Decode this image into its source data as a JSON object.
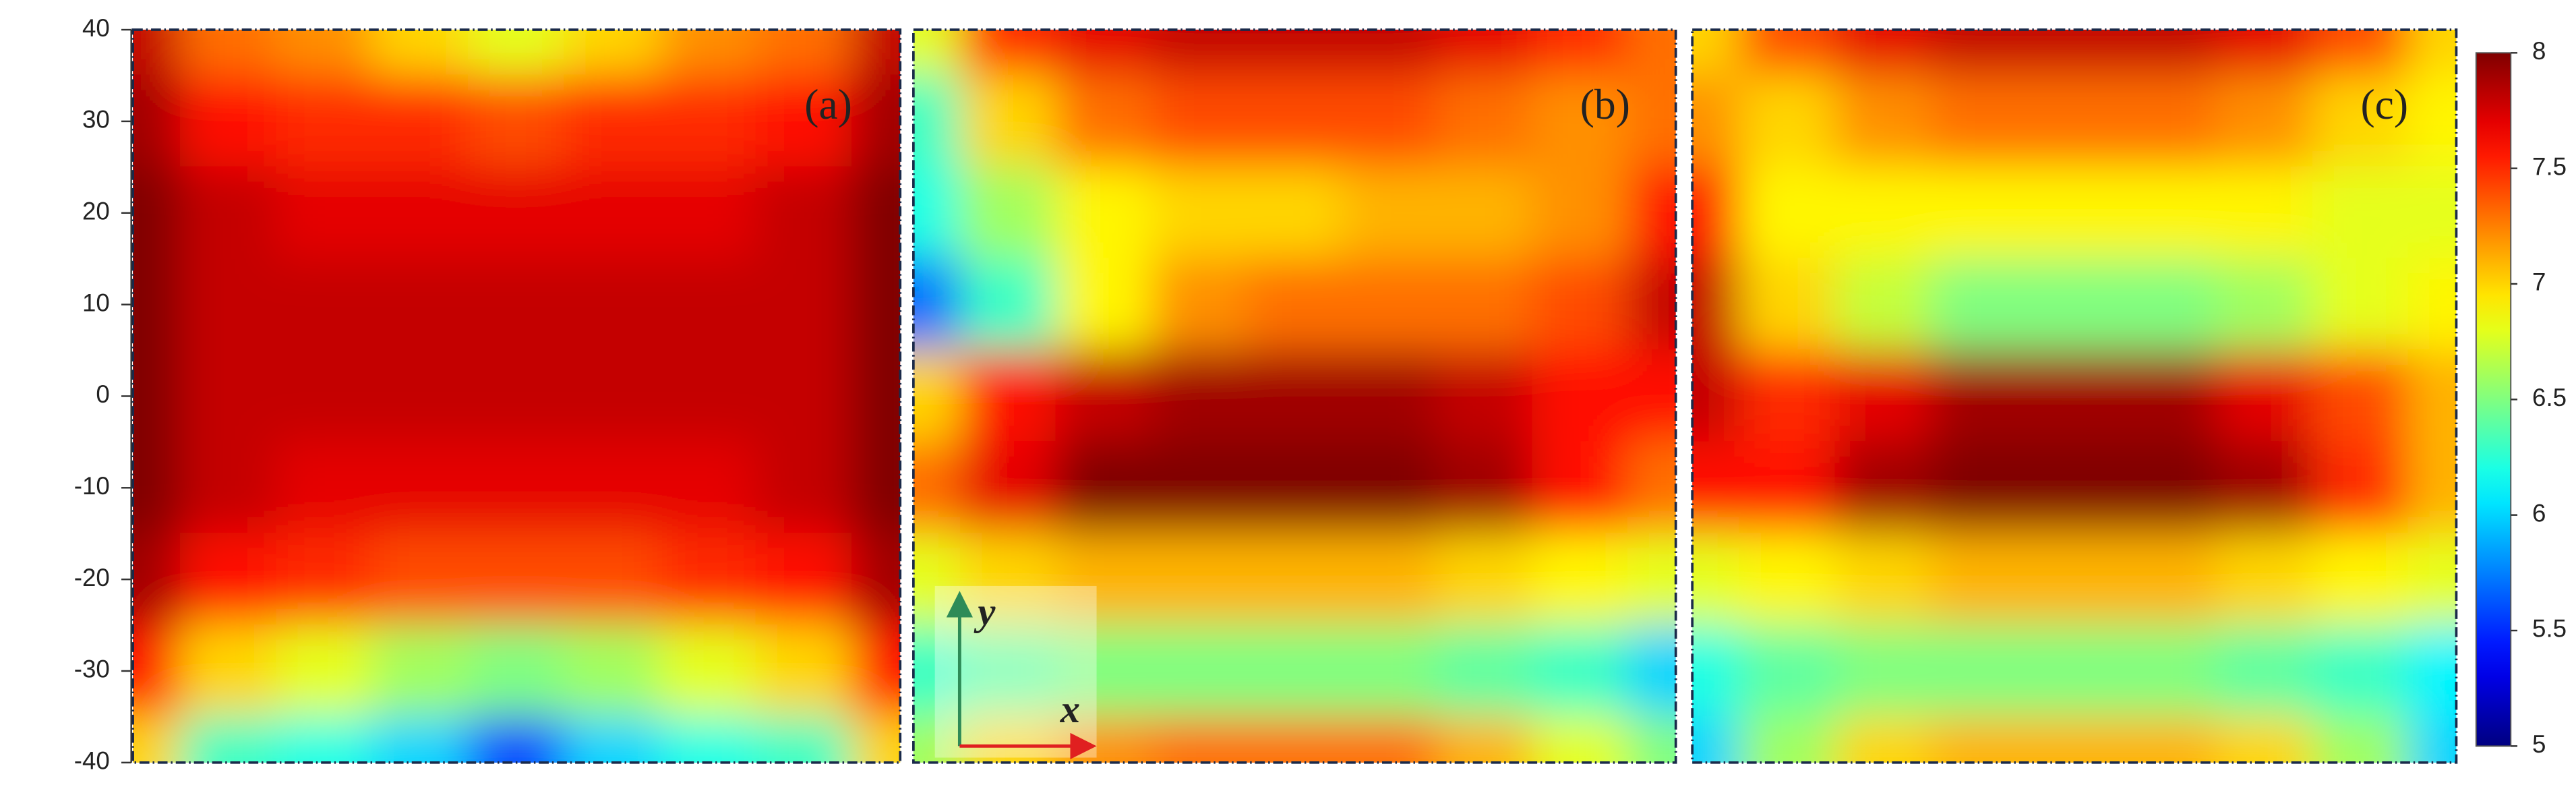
{
  "chart_data": {
    "type": "heatmap",
    "colormap": "jet",
    "y": [
      40,
      30,
      20,
      10,
      0,
      -10,
      -20,
      -30,
      -40
    ],
    "ylim": [
      -40,
      40
    ],
    "yticks": [
      40,
      30,
      20,
      10,
      0,
      -10,
      -20,
      -30,
      -40
    ],
    "colorbar": {
      "lim": [
        5,
        8
      ],
      "ticks": [
        8,
        7.5,
        7,
        6.5,
        6,
        5.5,
        5
      ]
    },
    "inset": {
      "x_label": "x",
      "y_label": "y"
    },
    "panels": [
      {
        "label": "(a)",
        "values": [
          [
            7.8,
            7.3,
            7.2,
            7.0,
            6.8,
            7.0,
            7.2,
            7.3,
            7.8
          ],
          [
            7.9,
            7.6,
            7.5,
            7.5,
            7.4,
            7.5,
            7.5,
            7.6,
            7.9
          ],
          [
            8.0,
            7.8,
            7.7,
            7.7,
            7.7,
            7.7,
            7.7,
            7.8,
            8.0
          ],
          [
            8.0,
            7.8,
            7.8,
            7.8,
            7.8,
            7.8,
            7.8,
            7.8,
            8.0
          ],
          [
            8.0,
            7.8,
            7.8,
            7.8,
            7.8,
            7.8,
            7.8,
            7.8,
            8.0
          ],
          [
            8.0,
            7.8,
            7.7,
            7.7,
            7.7,
            7.7,
            7.7,
            7.8,
            8.0
          ],
          [
            7.9,
            7.6,
            7.5,
            7.4,
            7.4,
            7.4,
            7.5,
            7.6,
            7.9
          ],
          [
            7.6,
            7.0,
            6.8,
            6.6,
            6.5,
            6.6,
            6.8,
            7.0,
            7.6
          ],
          [
            7.0,
            6.3,
            6.2,
            6.0,
            5.6,
            6.0,
            6.2,
            6.3,
            7.0
          ]
        ]
      },
      {
        "label": "(b)",
        "values": [
          [
            6.8,
            7.5,
            7.7,
            7.8,
            7.8,
            7.8,
            7.7,
            7.5,
            7.3
          ],
          [
            6.3,
            7.0,
            7.3,
            7.4,
            7.4,
            7.4,
            7.3,
            7.2,
            7.3
          ],
          [
            6.2,
            6.6,
            6.9,
            7.0,
            7.0,
            7.1,
            7.1,
            7.2,
            7.6
          ],
          [
            5.7,
            6.3,
            6.9,
            7.2,
            7.3,
            7.3,
            7.3,
            7.4,
            7.8
          ],
          [
            7.0,
            7.6,
            7.8,
            7.9,
            7.9,
            7.9,
            7.8,
            7.6,
            7.6
          ],
          [
            7.3,
            7.7,
            8.0,
            8.0,
            8.0,
            8.0,
            7.9,
            7.6,
            7.3
          ],
          [
            6.8,
            7.0,
            7.1,
            7.1,
            7.1,
            7.1,
            7.0,
            6.9,
            6.8
          ],
          [
            6.3,
            6.4,
            6.5,
            6.5,
            6.5,
            6.5,
            6.4,
            6.3,
            6.0
          ],
          [
            6.6,
            7.0,
            7.2,
            7.3,
            7.3,
            7.3,
            7.1,
            6.8,
            6.5
          ]
        ]
      },
      {
        "label": "(c)",
        "values": [
          [
            7.0,
            7.4,
            7.7,
            7.8,
            7.8,
            7.8,
            7.7,
            7.4,
            7.0
          ],
          [
            7.2,
            7.0,
            7.2,
            7.3,
            7.3,
            7.3,
            7.2,
            7.0,
            6.9
          ],
          [
            7.6,
            6.9,
            6.9,
            6.9,
            6.9,
            6.9,
            6.9,
            6.8,
            6.8
          ],
          [
            7.8,
            7.0,
            6.7,
            6.5,
            6.5,
            6.5,
            6.6,
            6.8,
            6.9
          ],
          [
            7.8,
            7.5,
            7.7,
            7.9,
            7.9,
            7.9,
            7.7,
            7.4,
            7.1
          ],
          [
            7.6,
            7.6,
            7.9,
            8.0,
            8.0,
            8.0,
            7.9,
            7.5,
            7.1
          ],
          [
            6.8,
            6.9,
            7.0,
            7.1,
            7.1,
            7.1,
            7.0,
            6.9,
            6.8
          ],
          [
            6.2,
            6.4,
            6.5,
            6.5,
            6.5,
            6.5,
            6.4,
            6.3,
            6.1
          ],
          [
            6.0,
            6.6,
            7.0,
            7.1,
            7.1,
            7.1,
            7.0,
            6.6,
            6.0
          ]
        ]
      }
    ]
  }
}
